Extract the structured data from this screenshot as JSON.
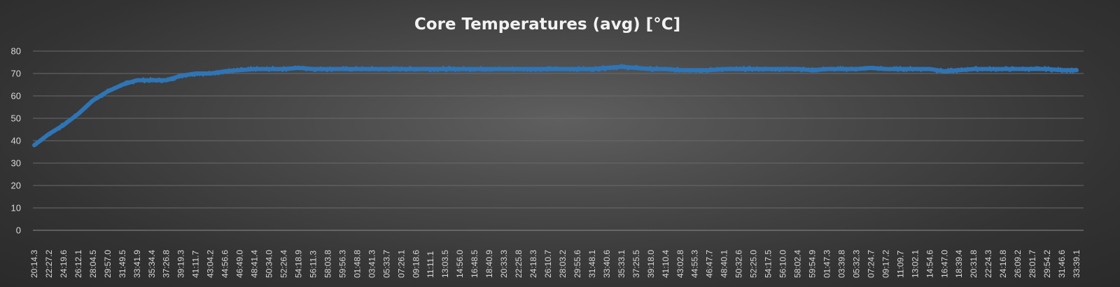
{
  "chart_data": {
    "type": "line",
    "title": "Core Temperatures (avg) [°C]",
    "xlabel": "",
    "ylabel": "",
    "ylim": [
      0,
      80
    ],
    "yticks": [
      0,
      10,
      20,
      30,
      40,
      50,
      60,
      70,
      80
    ],
    "grid": true,
    "legend": "none",
    "series_color": "#2e75b6",
    "x": [
      "20:14.3",
      "22:27.2",
      "24:19.6",
      "26:12.1",
      "28:04.5",
      "29:57.0",
      "31:49.5",
      "33:41.9",
      "35:34.4",
      "37:26.8",
      "39:19.3",
      "41:11.7",
      "43:04.2",
      "44:56.6",
      "46:49.0",
      "48:41.4",
      "50:34.0",
      "52:26.4",
      "54:18.9",
      "56:11.3",
      "58:03.8",
      "59:56.3",
      "01:48.8",
      "03:41.3",
      "05:33.7",
      "07:26.1",
      "09:18.6",
      "11:11.1",
      "13:03.5",
      "14:56.0",
      "16:48.5",
      "18:40.9",
      "20:33.3",
      "22:25.8",
      "24:18.3",
      "26:10.7",
      "28:03.2",
      "29:55.6",
      "31:48.1",
      "33:40.6",
      "35:33.1",
      "37:25.5",
      "39:18.0",
      "41:10.4",
      "43:02.8",
      "44:55.3",
      "46:47.7",
      "48:40.1",
      "50:32.6",
      "52:25.0",
      "54:17.5",
      "56:10.0",
      "58:02.4",
      "59:54.9",
      "01:47.3",
      "03:39.8",
      "05:32.3",
      "07:24.7",
      "09:17.2",
      "11:09.7",
      "13:02.1",
      "14:54.6",
      "16:47.0",
      "18:39.4",
      "20:31.8",
      "22:24.3",
      "24:16.8",
      "26:09.2",
      "28:01.7",
      "29:54.2",
      "31:46.6",
      "33:39.1"
    ],
    "y": [
      38,
      43,
      47,
      52,
      58,
      62,
      65,
      67,
      67,
      67,
      69,
      70,
      70,
      71,
      71.5,
      72,
      72,
      72,
      72.5,
      72,
      72,
      72,
      72,
      72,
      72,
      72,
      72,
      72,
      72,
      72,
      72,
      72,
      72,
      72,
      72,
      72,
      72,
      72,
      72,
      72.5,
      73,
      72.5,
      72,
      72,
      71.5,
      71.5,
      71.5,
      72,
      72,
      72,
      72,
      72,
      72,
      71.5,
      72,
      72,
      72,
      72.5,
      72,
      72,
      72,
      72,
      71,
      71.5,
      72,
      72,
      72,
      72,
      72,
      72,
      71.5,
      71.5
    ]
  }
}
